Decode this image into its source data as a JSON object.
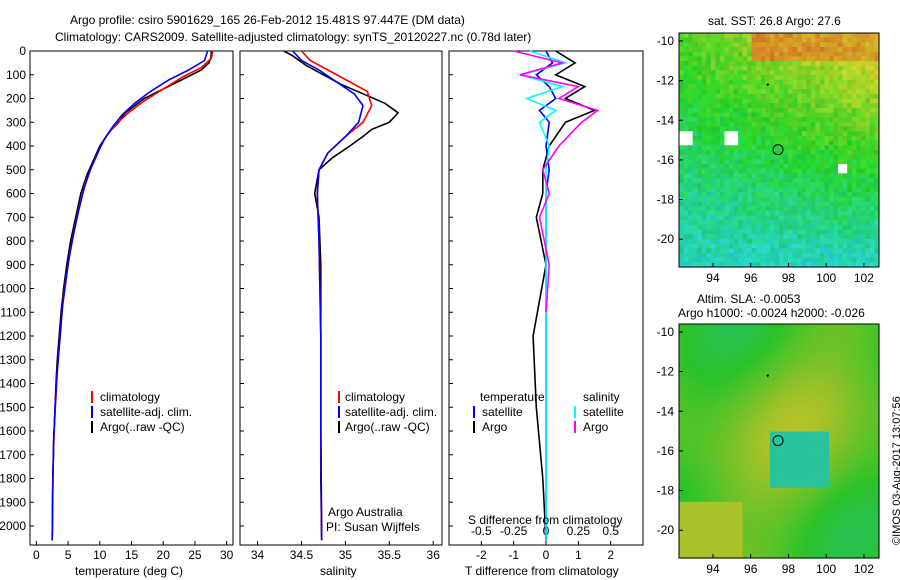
{
  "header": {
    "line1": "Argo profile: csiro 5901629_165 26-Feb-2012 15.481S 97.447E (DM data)",
    "line2": "Climatology: CARS2009. Satellite-adjusted climatology: synTS_20120227.nc (0.78d later)"
  },
  "colors": {
    "climatology": "#ff0000",
    "satellite": "#0000ff",
    "argo": "#000000",
    "sat_s": "#00ffff",
    "argo_s": "#ff00ff"
  },
  "chart_data": [
    {
      "id": "temperature",
      "type": "line",
      "xlabel": "temperature (deg C)",
      "xlim": [
        -1,
        31
      ],
      "ylim": [
        0,
        2080
      ],
      "xticks": [
        0,
        5,
        10,
        15,
        20,
        25,
        30
      ],
      "yticks": [
        0,
        100,
        200,
        300,
        400,
        500,
        600,
        700,
        800,
        900,
        1000,
        1100,
        1200,
        1300,
        1400,
        1500,
        1600,
        1700,
        1800,
        1900,
        2000
      ],
      "legend": [
        "climatology",
        "satellite-adj. clim.",
        "Argo(..raw -QC)"
      ],
      "series": [
        {
          "name": "Argo",
          "color": "#000000",
          "x": [
            27.6,
            27.5,
            27.2,
            26,
            23,
            20,
            17,
            14,
            13,
            11.5,
            10,
            9,
            8,
            7,
            6.2,
            5.4,
            4.8,
            4.3,
            3.9,
            3.6,
            3.3,
            3.1,
            2.8,
            2.6,
            2.5
          ],
          "y": [
            0,
            30,
            50,
            80,
            120,
            160,
            200,
            260,
            300,
            340,
            400,
            460,
            520,
            600,
            700,
            800,
            900,
            1000,
            1100,
            1200,
            1300,
            1400,
            1600,
            1800,
            2060
          ]
        },
        {
          "name": "climatology",
          "color": "#ff0000",
          "x": [
            27.8,
            27.6,
            26,
            23,
            20,
            17,
            14.5,
            12.5,
            11,
            9.8,
            8.8,
            7.8,
            6.8,
            6,
            5.3,
            4.7,
            4.2,
            3.9,
            3.6,
            3.3,
            3.1,
            2.8,
            2.6,
            2.5
          ],
          "y": [
            0,
            30,
            70,
            110,
            160,
            210,
            260,
            310,
            360,
            420,
            480,
            550,
            650,
            750,
            850,
            950,
            1050,
            1150,
            1250,
            1350,
            1450,
            1600,
            1800,
            2060
          ]
        },
        {
          "name": "satellite-adj. clim.",
          "color": "#0000ff",
          "x": [
            27,
            26.5,
            24,
            21,
            18,
            15.5,
            13.5,
            12,
            10.5,
            9.5,
            8.5,
            7.5,
            6.6,
            5.8,
            5.1,
            4.6,
            4.1,
            3.8,
            3.5,
            3.2,
            3,
            2.7,
            2.6,
            2.5
          ],
          "y": [
            0,
            40,
            80,
            120,
            170,
            220,
            270,
            320,
            380,
            440,
            500,
            580,
            680,
            780,
            880,
            980,
            1080,
            1180,
            1280,
            1380,
            1480,
            1650,
            1850,
            2060
          ]
        }
      ]
    },
    {
      "id": "salinity",
      "type": "line",
      "xlabel": "salinity",
      "xlim": [
        33.8,
        36.1
      ],
      "ylim": [
        0,
        2080
      ],
      "xticks": [
        34,
        34.5,
        35,
        35.5,
        36
      ],
      "xticklabels": [
        "34",
        "34.5",
        "35",
        "35.5",
        "36"
      ],
      "legend": [
        "climatology",
        "satellite-adj. clim.",
        "Argo(..raw -QC)"
      ],
      "annotations": [
        "Argo Australia",
        "PI: Susan Wijffels"
      ],
      "series": [
        {
          "name": "Argo",
          "color": "#000000",
          "x": [
            34.3,
            34.4,
            34.55,
            34.75,
            34.95,
            35.2,
            35.45,
            35.6,
            35.5,
            35.3,
            35.2,
            35.05,
            34.85,
            34.7,
            34.65,
            34.7,
            34.72,
            34.72,
            34.72,
            34.72,
            34.73
          ],
          "y": [
            0,
            20,
            60,
            100,
            140,
            180,
            220,
            260,
            300,
            330,
            360,
            400,
            450,
            500,
            600,
            700,
            900,
            1200,
            1500,
            1800,
            2060
          ]
        },
        {
          "name": "climatology",
          "color": "#ff0000",
          "x": [
            34.5,
            34.6,
            34.8,
            35,
            35.25,
            35.3,
            35.2,
            35,
            34.8,
            34.7,
            34.68,
            34.7,
            34.72,
            34.72,
            34.73
          ],
          "y": [
            0,
            40,
            80,
            120,
            170,
            230,
            300,
            360,
            430,
            500,
            600,
            800,
            1200,
            1600,
            2060
          ]
        },
        {
          "name": "satellite-adj. clim.",
          "color": "#0000ff",
          "x": [
            34.4,
            34.5,
            34.7,
            34.9,
            35.1,
            35.2,
            35.15,
            35,
            34.8,
            34.7,
            34.68,
            34.7,
            34.72,
            34.72,
            34.73
          ],
          "y": [
            0,
            40,
            80,
            130,
            180,
            230,
            300,
            360,
            430,
            500,
            600,
            800,
            1200,
            1600,
            2060
          ]
        }
      ]
    },
    {
      "id": "difference",
      "type": "line",
      "xlabel": "T difference from climatology",
      "xlabel_top": "S difference from climatology",
      "xlim": [
        -3,
        3
      ],
      "ylim": [
        0,
        2080
      ],
      "xticks": [
        -2,
        -1,
        0,
        1,
        2
      ],
      "xticklabels": [
        "-2",
        "-1",
        "0",
        "1",
        "2"
      ],
      "sticks": [
        -2,
        -1,
        0,
        1,
        2
      ],
      "sticklabels": [
        "-0.5",
        "-0.25",
        "0",
        "0.25",
        "0.5"
      ],
      "legend_headers": [
        "temperature",
        "salinity"
      ],
      "legend": [
        "satellite",
        "Argo",
        "satellite",
        "Argo"
      ],
      "series": [
        {
          "name": "temperature satellite",
          "color": "#0000ff",
          "x": [
            0,
            0.2,
            -0.3,
            0.1,
            0.3,
            -0.2,
            0.1,
            0,
            0.1,
            0,
            0,
            0,
            0,
            0,
            0
          ],
          "y": [
            0,
            50,
            100,
            150,
            200,
            250,
            300,
            400,
            500,
            600,
            800,
            1000,
            1400,
            1800,
            2060
          ]
        },
        {
          "name": "temperature Argo",
          "color": "#000000",
          "x": [
            0.3,
            0.9,
            0.3,
            1.2,
            0.6,
            1.5,
            0.6,
            0.1,
            -0.1,
            -0.1,
            -0.3,
            0,
            -0.4,
            -0.3,
            -0.1,
            0
          ],
          "y": [
            0,
            50,
            100,
            150,
            200,
            250,
            300,
            400,
            500,
            600,
            700,
            900,
            1200,
            1500,
            1800,
            2060
          ]
        },
        {
          "name": "salinity satellite",
          "color": "#00ffff",
          "x": [
            -0.5,
            0.6,
            -0.8,
            0.5,
            -0.6,
            0.3,
            -0.2,
            0.1,
            0,
            0,
            0,
            0,
            0
          ],
          "y": [
            0,
            50,
            100,
            150,
            200,
            250,
            300,
            400,
            500,
            700,
            1000,
            1500,
            2060
          ]
        },
        {
          "name": "salinity Argo",
          "color": "#ff00ff",
          "x": [
            -1,
            0.5,
            -0.8,
            1,
            0.4,
            1.6,
            1.1,
            0.4,
            -0.1,
            0.1,
            -0.2,
            0.1,
            0
          ],
          "y": [
            0,
            50,
            100,
            150,
            200,
            250,
            300,
            400,
            500,
            600,
            700,
            900,
            1100
          ]
        }
      ]
    },
    {
      "id": "sst_map",
      "type": "heatmap",
      "title": "sat. SST: 26.8 Argo: 27.6",
      "xlim": [
        92.2,
        102.8
      ],
      "ylim": [
        -21.4,
        -9.6
      ],
      "xticks": [
        94,
        96,
        98,
        100,
        102
      ],
      "yticks": [
        -10,
        -12,
        -14,
        -16,
        -18,
        -20
      ],
      "argo_position": [
        97.45,
        -15.48
      ]
    },
    {
      "id": "sla_map",
      "type": "heatmap",
      "title": "Altim. SLA: -0.0053",
      "subtitle": "Argo h1000: -0.0024 h2000: -0.026",
      "xlim": [
        92.2,
        102.8
      ],
      "ylim": [
        -21.4,
        -9.6
      ],
      "xticks": [
        94,
        96,
        98,
        100,
        102
      ],
      "yticks": [
        -10,
        -12,
        -14,
        -16,
        -18,
        -20
      ],
      "argo_position": [
        97.45,
        -15.48
      ]
    }
  ],
  "footer": {
    "credit": "©IMOS 03-Aug-2017 13:07:56"
  }
}
